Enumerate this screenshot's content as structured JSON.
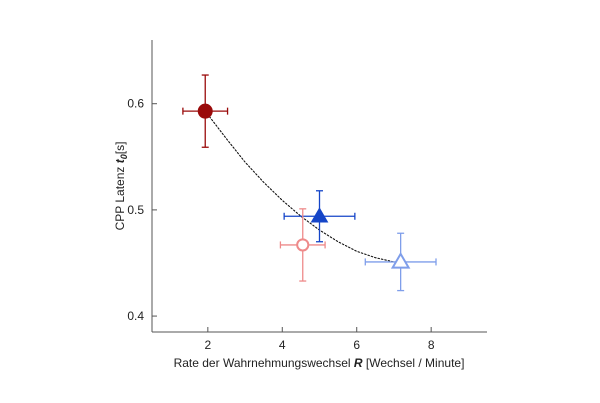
{
  "chart_data": {
    "type": "scatter",
    "title": "",
    "xlabel": {
      "text": "Rate der Wahrnehmungswechsel",
      "symbol": "R",
      "unit": "[Wechsel / Minute]"
    },
    "ylabel": {
      "text": "CPP Latenz",
      "symbol": "t",
      "subscript": "0",
      "unit": "[s]"
    },
    "xlim": [
      0.5,
      9.5
    ],
    "ylim": [
      0.385,
      0.66
    ],
    "x_ticks": [
      2,
      4,
      6,
      8
    ],
    "y_ticks": [
      0.4,
      0.5,
      0.6
    ],
    "x_tick_labels": [
      "2",
      "4",
      "6",
      "8"
    ],
    "y_tick_labels": [
      "0.4",
      "0.5",
      "0.6"
    ],
    "grid": false,
    "legend": "none",
    "points": [
      {
        "x": 1.93,
        "y": 0.593,
        "x_err": 0.6,
        "y_err": 0.034,
        "marker": "circle-filled",
        "color": "#9a0a0a"
      },
      {
        "x": 5.0,
        "y": 0.494,
        "x_err": 0.95,
        "y_err": 0.024,
        "marker": "triangle-filled",
        "color": "#1545c8"
      },
      {
        "x": 4.55,
        "y": 0.467,
        "x_err": 0.6,
        "y_err": 0.034,
        "marker": "circle-open",
        "color": "#ee8a8a"
      },
      {
        "x": 7.18,
        "y": 0.451,
        "x_err": 0.95,
        "y_err": 0.027,
        "marker": "triangle-open",
        "color": "#7f9eea"
      }
    ],
    "fit_curve": {
      "style": "dotted",
      "color": "#111111",
      "x": [
        1.93,
        2.5,
        3.0,
        3.5,
        4.0,
        4.5,
        5.0,
        5.5,
        6.0,
        6.5,
        7.0,
        7.18
      ],
      "y": [
        0.593,
        0.567,
        0.545,
        0.526,
        0.509,
        0.494,
        0.481,
        0.47,
        0.461,
        0.455,
        0.451,
        0.451
      ]
    }
  }
}
